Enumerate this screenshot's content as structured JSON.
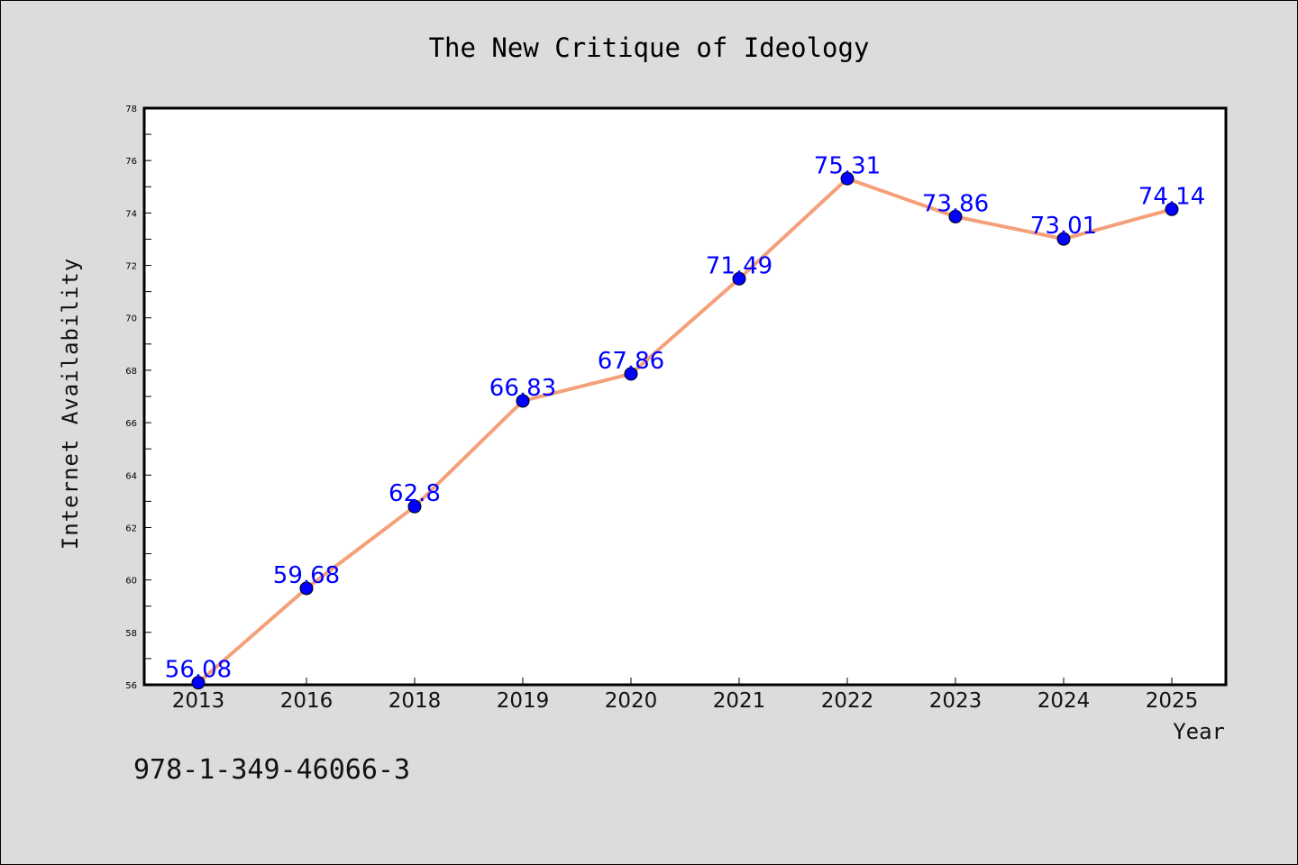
{
  "chart_data": {
    "type": "line",
    "title": "The New Critique of Ideology",
    "xlabel": "Year",
    "ylabel": "Internet Availability",
    "categories": [
      "2013",
      "2016",
      "2018",
      "2019",
      "2020",
      "2021",
      "2022",
      "2023",
      "2024",
      "2025"
    ],
    "values": [
      56.08,
      59.68,
      62.8,
      66.83,
      67.86,
      71.49,
      75.31,
      73.86,
      73.01,
      74.14
    ],
    "data_labels": [
      "56.08",
      "59.68",
      "62.8",
      "66.83",
      "67.86",
      "71.49",
      "75.31",
      "73.86",
      "73.01",
      "74.14"
    ],
    "ylim": [
      56,
      78
    ],
    "yticks": [
      56,
      58,
      60,
      62,
      64,
      66,
      68,
      70,
      72,
      74,
      76,
      78
    ],
    "grid": false,
    "line_color": "#f4a07a",
    "marker_color": "#0000ff",
    "label_color": "#0000ff"
  },
  "footer_text": "978-1-349-46066-3"
}
